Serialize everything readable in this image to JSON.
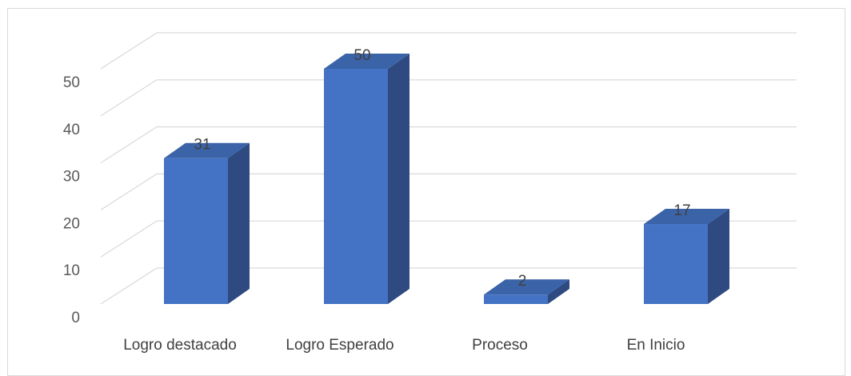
{
  "chart_data": {
    "type": "bar",
    "categories": [
      "Logro destacado",
      "Logro Esperado",
      "Proceso",
      "En Inicio"
    ],
    "values": [
      31,
      50,
      2,
      17
    ],
    "data_labels": [
      "31",
      "50",
      "2",
      "17"
    ],
    "title": "",
    "xlabel": "",
    "ylabel": "",
    "ylim": [
      0,
      50
    ],
    "yticks": [
      0,
      10,
      20,
      30,
      40,
      50
    ],
    "ytick_labels": [
      "0",
      "10",
      "20",
      "30",
      "40",
      "50"
    ],
    "grid": true,
    "legend": "none",
    "style": "3d-column",
    "colors": {
      "bar_front": "#4472c4",
      "bar_side": "#2e4a80",
      "bar_top": "#3a63a8",
      "gridline": "#d9d9d9",
      "frame": "#d9d9d9"
    }
  }
}
